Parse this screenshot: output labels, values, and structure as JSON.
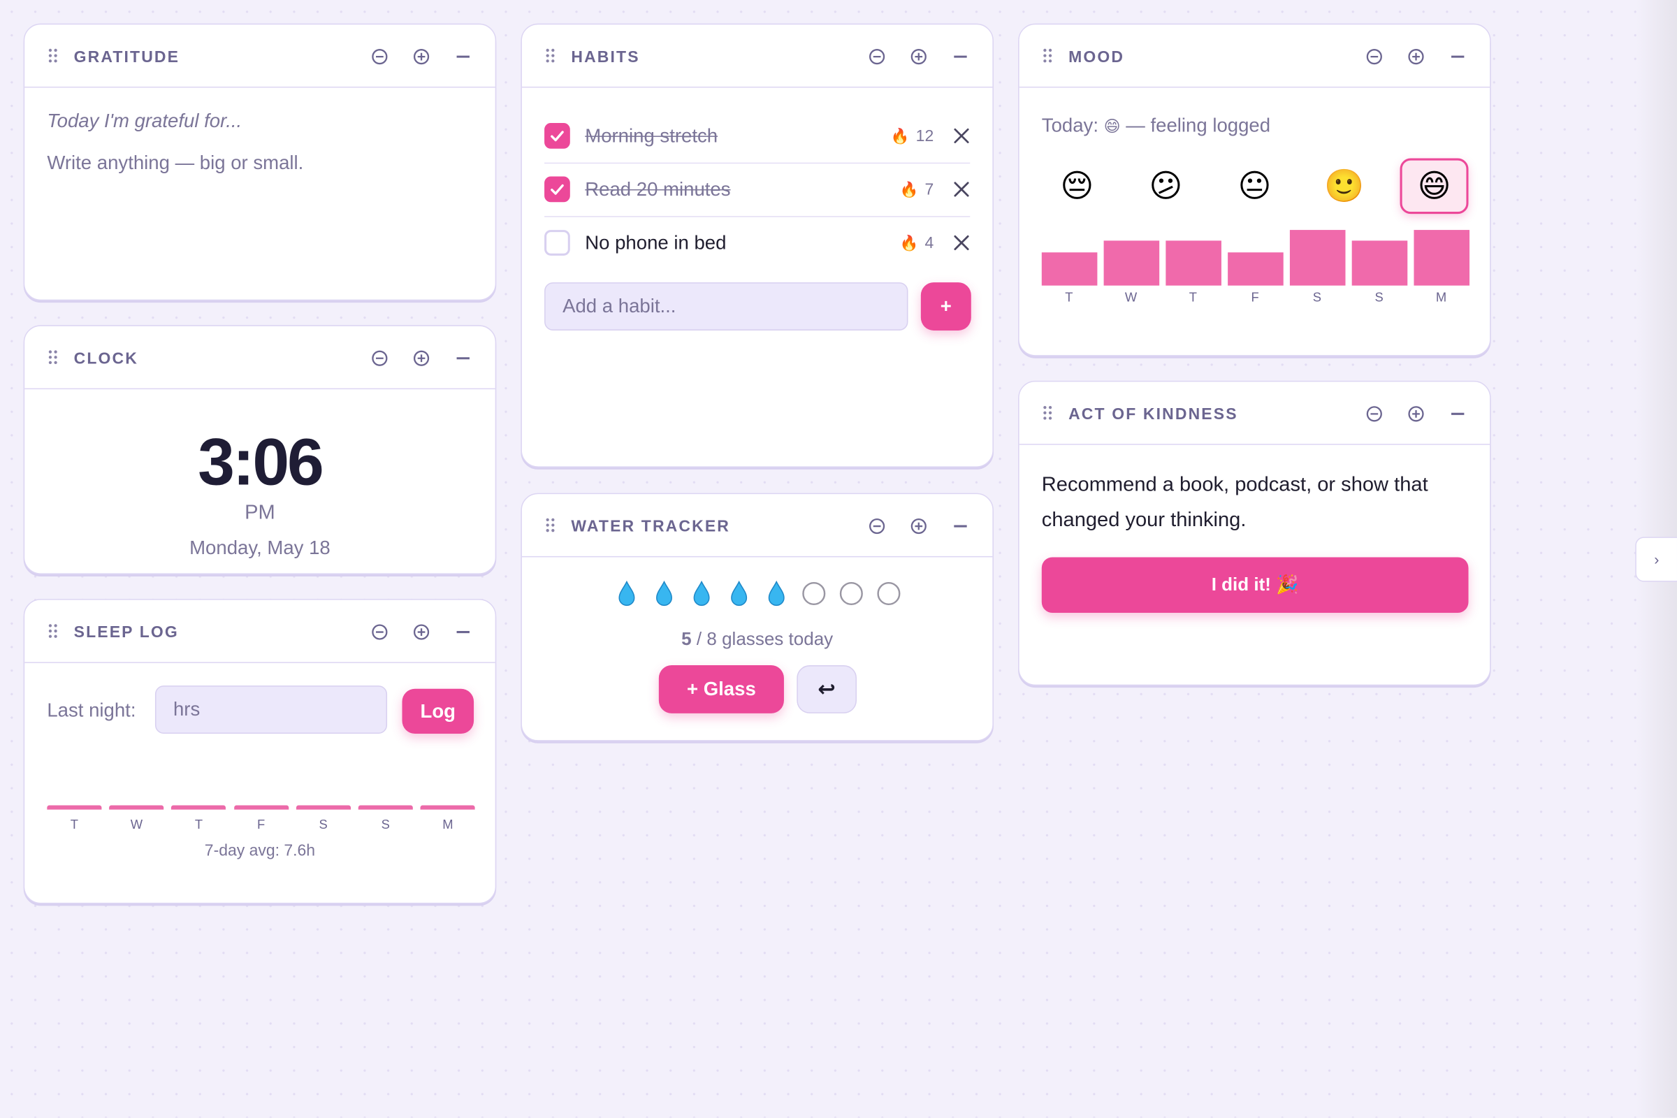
{
  "widgets": {
    "gratitude": {
      "title": "GRATITUDE",
      "prompt": "Today I'm grateful for...",
      "placeholder": "Write anything — big or small."
    },
    "clock": {
      "title": "CLOCK",
      "time": "3:06",
      "period": "PM",
      "date": "Monday, May 18"
    },
    "sleep_log": {
      "title": "SLEEP LOG",
      "label": "Last night:",
      "placeholder": "hrs",
      "button": "Log",
      "days": [
        "T",
        "W",
        "T",
        "F",
        "S",
        "S",
        "M"
      ],
      "average": "7-day avg: 7.6h"
    },
    "habits": {
      "title": "HABITS",
      "streak_icon": "🔥",
      "items": [
        {
          "name": "Morning stretch",
          "done": true,
          "streak": 12
        },
        {
          "name": "Read 20 minutes",
          "done": true,
          "streak": 7
        },
        {
          "name": "No phone in bed",
          "done": false,
          "streak": 4
        }
      ],
      "placeholder": "Add a habit...",
      "add_button": "+"
    },
    "water_tracker": {
      "title": "WATER TRACKER",
      "filled": 5,
      "separator": "/",
      "goal": 8,
      "unit": "glasses today",
      "add_button": "+ Glass",
      "undo_button": "↩"
    },
    "mood": {
      "title": "MOOD",
      "today_label": "Today:",
      "today_emoji": "😄",
      "today_note": "— feeling logged",
      "options": [
        "😔",
        "😕",
        "😐",
        "🙂",
        "😄"
      ],
      "selected": 4,
      "days": [
        "T",
        "W",
        "T",
        "F",
        "S",
        "S",
        "M"
      ],
      "values": [
        3,
        4,
        4,
        3,
        5,
        4,
        5
      ]
    },
    "act_of_kindness": {
      "title": "ACT OF KINDNESS",
      "text": "Recommend a book, podcast, or show that changed your thinking.",
      "button": "I did it! 🎉"
    }
  },
  "sidebar_toggle": "›"
}
